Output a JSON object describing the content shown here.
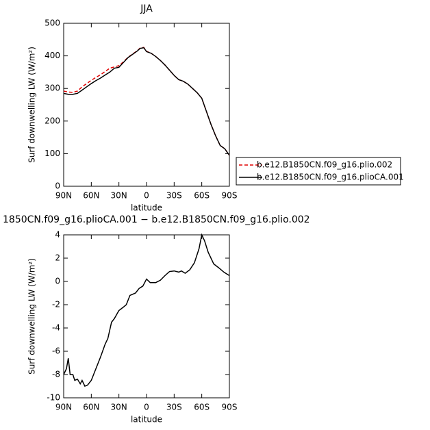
{
  "chart_data": [
    {
      "type": "line",
      "title": "JJA",
      "xlabel": "latitude",
      "ylabel": "Surf downwelling LW (W/m²)",
      "x": [
        90,
        85,
        80,
        75,
        70,
        65,
        60,
        55,
        50,
        45,
        40,
        35,
        30,
        25,
        20,
        15,
        10,
        7,
        3,
        0,
        -5,
        -10,
        -15,
        -20,
        -25,
        -30,
        -35,
        -40,
        -45,
        -50,
        -55,
        -60,
        -65,
        -70,
        -75,
        -80,
        -85,
        -90
      ],
      "xlim": [
        90,
        -90
      ],
      "xticks": [
        {
          "value": 90,
          "label": "90N"
        },
        {
          "value": 60,
          "label": "60N"
        },
        {
          "value": 30,
          "label": "30N"
        },
        0,
        {
          "value": -30,
          "label": "30S"
        },
        {
          "value": -60,
          "label": "60S"
        },
        {
          "value": -90,
          "label": "90S"
        }
      ],
      "ylim": [
        0,
        500
      ],
      "yticks": [
        0,
        100,
        200,
        300,
        400,
        500
      ],
      "legend": "right",
      "series": [
        {
          "name": "b.e12.B1850CN.f09_g16.plio.002",
          "color": "#e00000",
          "linestyle": "dashed",
          "values": [
            292,
            289,
            288,
            292,
            305,
            315,
            325,
            334,
            342,
            352,
            362,
            366,
            370,
            382,
            396,
            406,
            416,
            424,
            426,
            414,
            408,
            398,
            386,
            372,
            356,
            340,
            327,
            322,
            313,
            300,
            287,
            270,
            230,
            190,
            155,
            125,
            115,
            95
          ]
        },
        {
          "name": "b.e12.B1850CN.f09_g16.plioCA.001",
          "color": "#000000",
          "linestyle": "solid",
          "values": [
            285,
            282,
            282,
            285,
            295,
            305,
            315,
            324,
            332,
            341,
            350,
            362,
            365,
            380,
            395,
            405,
            415,
            423,
            425,
            413,
            408,
            398,
            386,
            372,
            356,
            340,
            327,
            322,
            313,
            300,
            287,
            270,
            230,
            190,
            155,
            125,
            115,
            95
          ]
        }
      ]
    },
    {
      "type": "line",
      "title": "1850CN.f09_g16.plioCA.001 − b.e12.B1850CN.f09_g16.plio.002",
      "xlabel": "latitude",
      "ylabel": "Surf downwelling LW (W/m²)",
      "x": [
        90,
        87,
        85,
        83,
        80,
        78,
        75,
        72,
        70,
        67,
        64,
        60,
        55,
        50,
        45,
        42,
        38,
        35,
        30,
        25,
        22,
        18,
        12,
        8,
        4,
        0,
        -4,
        -10,
        -15,
        -20,
        -25,
        -30,
        -35,
        -38,
        -42,
        -47,
        -52,
        -57,
        -60,
        -63,
        -67,
        -73,
        -78,
        -84,
        -90
      ],
      "xlim": [
        90,
        -90
      ],
      "xticks": [
        {
          "value": 90,
          "label": "90N"
        },
        {
          "value": 60,
          "label": "60N"
        },
        {
          "value": 30,
          "label": "30N"
        },
        0,
        {
          "value": -30,
          "label": "30S"
        },
        {
          "value": -60,
          "label": "60S"
        },
        {
          "value": -90,
          "label": "90S"
        }
      ],
      "ylim": [
        -10,
        4
      ],
      "yticks": [
        -10,
        -8,
        -6,
        -4,
        -2,
        0,
        2,
        4
      ],
      "series": [
        {
          "color": "#000000",
          "linestyle": "solid",
          "values": [
            -8,
            -7.5,
            -6.6,
            -8,
            -8,
            -8.5,
            -8.4,
            -8.8,
            -8.5,
            -9,
            -8.9,
            -8.5,
            -7.5,
            -6.5,
            -5.4,
            -4.9,
            -3.5,
            -3.2,
            -2.5,
            -2.2,
            -2.0,
            -1.2,
            -1.0,
            -0.6,
            -0.4,
            0.2,
            -0.1,
            -0.1,
            0.1,
            0.5,
            0.85,
            0.9,
            0.8,
            0.9,
            0.7,
            1.0,
            1.6,
            2.8,
            4.0,
            3.5,
            2.5,
            1.5,
            1.2,
            0.8,
            0.5
          ]
        }
      ]
    }
  ]
}
